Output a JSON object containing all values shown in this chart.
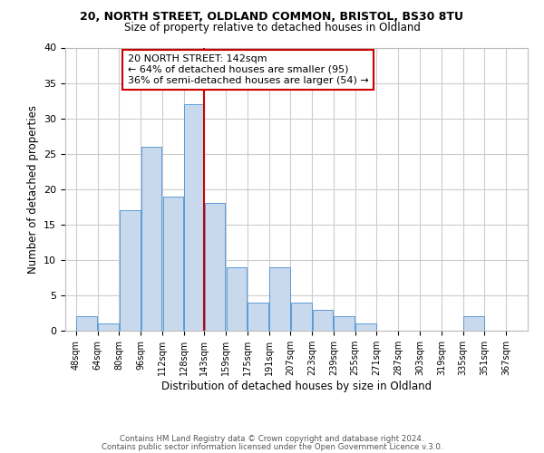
{
  "title1": "20, NORTH STREET, OLDLAND COMMON, BRISTOL, BS30 8TU",
  "title2": "Size of property relative to detached houses in Oldland",
  "xlabel": "Distribution of detached houses by size in Oldland",
  "ylabel": "Number of detached properties",
  "bar_left_edges": [
    48,
    64,
    80,
    96,
    112,
    128,
    143,
    159,
    175,
    191,
    207,
    223,
    239,
    255,
    271,
    287,
    303,
    319,
    335,
    351
  ],
  "bar_widths": [
    16,
    16,
    16,
    16,
    16,
    15,
    16,
    16,
    16,
    16,
    16,
    16,
    16,
    16,
    16,
    16,
    16,
    16,
    16,
    16
  ],
  "bar_heights": [
    2,
    1,
    17,
    26,
    19,
    32,
    18,
    9,
    4,
    9,
    4,
    3,
    2,
    1,
    0,
    0,
    0,
    0,
    2,
    0
  ],
  "bar_color": "#c8d9ee",
  "bar_edgecolor": "#5b9bd5",
  "reference_line_x": 143,
  "reference_line_color": "#cc0000",
  "ylim": [
    0,
    40
  ],
  "yticks": [
    0,
    5,
    10,
    15,
    20,
    25,
    30,
    35,
    40
  ],
  "xtick_labels": [
    "48sqm",
    "64sqm",
    "80sqm",
    "96sqm",
    "112sqm",
    "128sqm",
    "143sqm",
    "159sqm",
    "175sqm",
    "191sqm",
    "207sqm",
    "223sqm",
    "239sqm",
    "255sqm",
    "271sqm",
    "287sqm",
    "303sqm",
    "319sqm",
    "335sqm",
    "351sqm",
    "367sqm"
  ],
  "xtick_positions": [
    48,
    64,
    80,
    96,
    112,
    128,
    143,
    159,
    175,
    191,
    207,
    223,
    239,
    255,
    271,
    287,
    303,
    319,
    335,
    351,
    367
  ],
  "annotation_title": "20 NORTH STREET: 142sqm",
  "annotation_line1": "← 64% of detached houses are smaller (95)",
  "annotation_line2": "36% of semi-detached houses are larger (54) →",
  "grid_color": "#cccccc",
  "background_color": "#ffffff",
  "footer1": "Contains HM Land Registry data © Crown copyright and database right 2024.",
  "footer2": "Contains public sector information licensed under the Open Government Licence v.3.0."
}
